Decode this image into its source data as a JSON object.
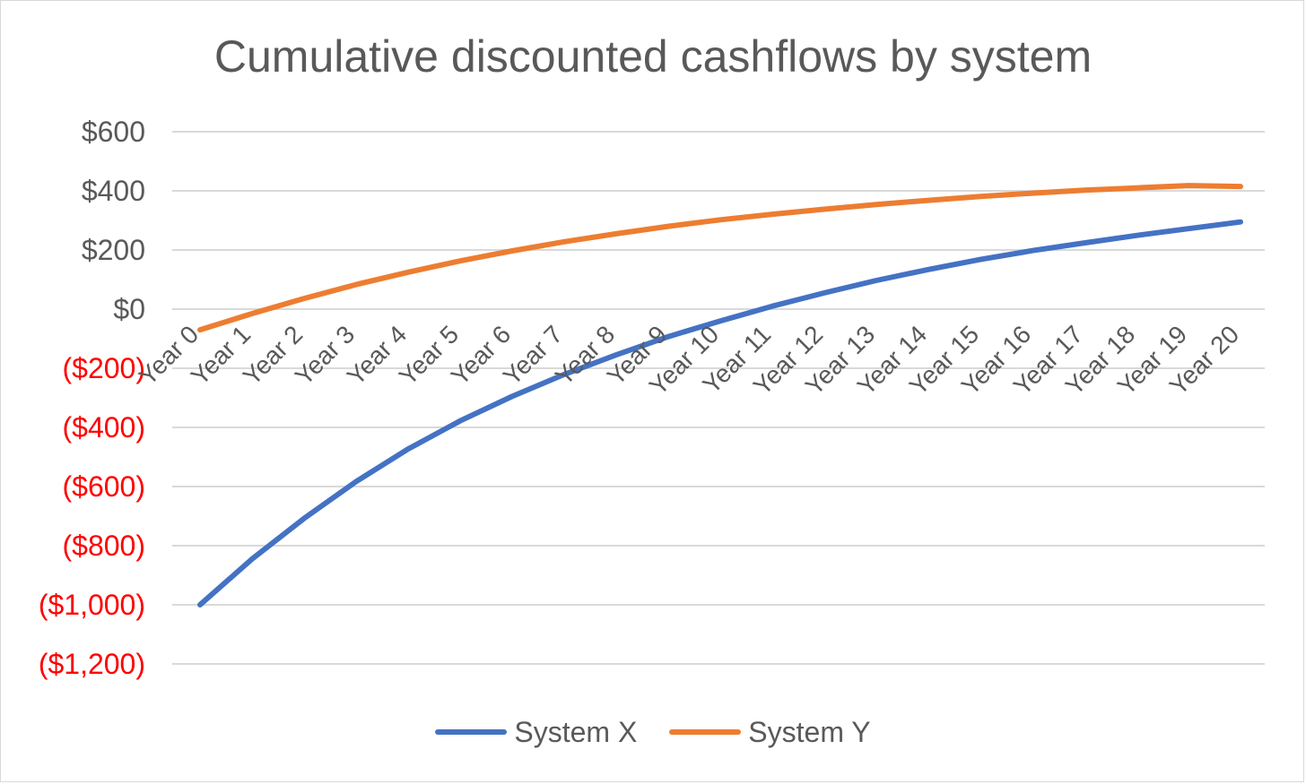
{
  "chart_data": {
    "type": "line",
    "title": "Cumulative discounted cashflows by system",
    "xlabel": "",
    "ylabel": "",
    "ylim": [
      -1200,
      600
    ],
    "yticks": [
      600,
      400,
      200,
      0,
      -200,
      -400,
      -600,
      -800,
      -1000,
      -1200
    ],
    "ytick_labels": [
      "$600",
      "$400",
      "$200",
      "$0",
      "($200)",
      "($400)",
      "($600)",
      "($800)",
      "($1,000)",
      "($1,200)"
    ],
    "negative_color": "#ff0000",
    "positive_color": "#595959",
    "grid": true,
    "legend_position": "bottom",
    "categories": [
      "Year 0",
      "Year 1",
      "Year 2",
      "Year 3",
      "Year 4",
      "Year 5",
      "Year 6",
      "Year 7",
      "Year 8",
      "Year 9",
      "Year 10",
      "Year 11",
      "Year 12",
      "Year 13",
      "Year 14",
      "Year 15",
      "Year 16",
      "Year 17",
      "Year 18",
      "Year 19",
      "Year 20"
    ],
    "series": [
      {
        "name": "System X",
        "color": "#4472c4",
        "values": [
          -1000,
          -845,
          -708,
          -583,
          -473,
          -378,
          -295,
          -221,
          -155,
          -93,
          -40,
          10,
          55,
          97,
          134,
          168,
          198,
          224,
          249,
          272,
          295
        ]
      },
      {
        "name": "System Y",
        "color": "#ed7d31",
        "values": [
          -70,
          -15,
          36,
          83,
          125,
          163,
          197,
          228,
          255,
          280,
          302,
          321,
          338,
          354,
          368,
          381,
          392,
          402,
          410,
          418,
          415
        ]
      }
    ]
  }
}
